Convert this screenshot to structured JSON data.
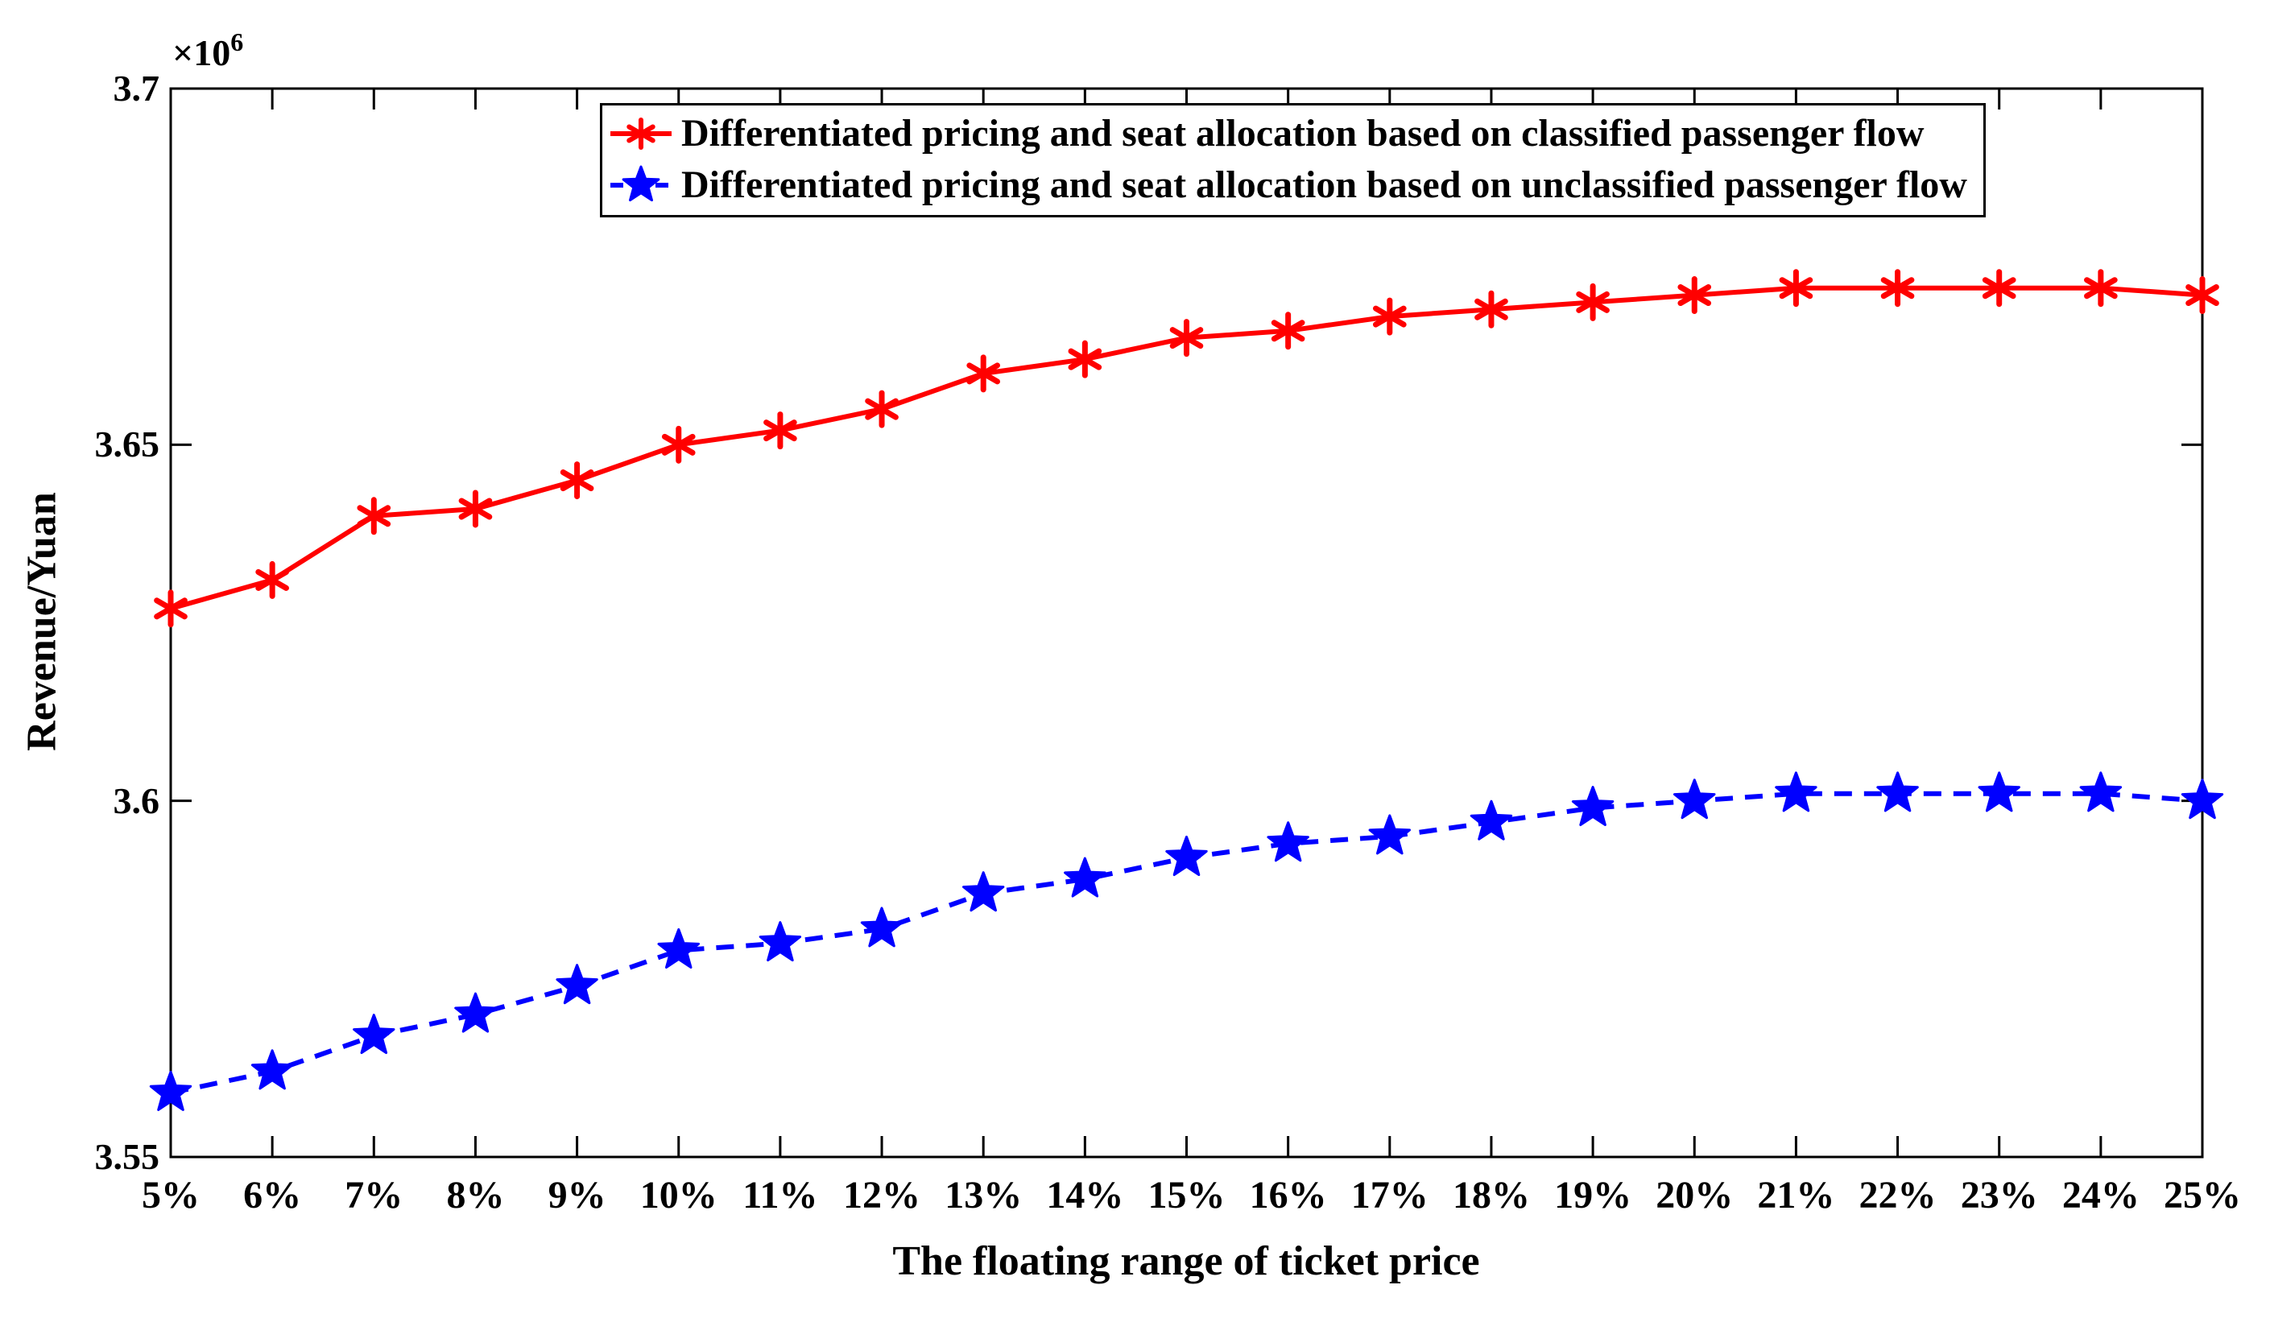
{
  "axes": {
    "x": {
      "label": "The floating range of ticket price",
      "tick_labels": [
        "5%",
        "6%",
        "7%",
        "8%",
        "9%",
        "10%",
        "11%",
        "12%",
        "13%",
        "14%",
        "15%",
        "16%",
        "17%",
        "18%",
        "19%",
        "20%",
        "21%",
        "22%",
        "23%",
        "24%",
        "25%"
      ]
    },
    "y": {
      "label": "Revenue/Yuan",
      "tick_labels": [
        "3.55",
        "3.6",
        "3.65",
        "3.7"
      ],
      "tick_values": [
        3.55,
        3.6,
        3.65,
        3.7
      ],
      "offset_text": "×10",
      "offset_exponent": "6"
    }
  },
  "legend": {
    "items": [
      {
        "label": "Differentiated pricing and seat allocation based on classified passenger flow",
        "color": "#FF0000",
        "line_style": "solid",
        "marker": "asterisk"
      },
      {
        "label": "Differentiated pricing and seat allocation based on unclassified passenger flow",
        "color": "#0000FF",
        "line_style": "dashed",
        "marker": "star"
      }
    ]
  },
  "colors": {
    "classified_series": "#FF0000",
    "unclassified_series": "#0000FF",
    "axis": "#000000",
    "background": "#FFFFFF"
  },
  "chart_data": {
    "type": "line",
    "title": "",
    "xlabel": "The floating range of ticket price",
    "ylabel": "Revenue/Yuan",
    "y_unit_multiplier": "x10^6",
    "categories": [
      "5%",
      "6%",
      "7%",
      "8%",
      "9%",
      "10%",
      "11%",
      "12%",
      "13%",
      "14%",
      "15%",
      "16%",
      "17%",
      "18%",
      "19%",
      "20%",
      "21%",
      "22%",
      "23%",
      "24%",
      "25%"
    ],
    "ylim": [
      3.55,
      3.7
    ],
    "y_ticks": [
      3.55,
      3.6,
      3.65,
      3.7
    ],
    "grid": false,
    "legend_position": "top-inside",
    "series": [
      {
        "name": "Differentiated pricing and seat allocation based on classified passenger flow",
        "color": "#FF0000",
        "line_style": "solid",
        "marker": "asterisk",
        "values": [
          3.627,
          3.631,
          3.64,
          3.641,
          3.645,
          3.65,
          3.652,
          3.655,
          3.66,
          3.662,
          3.665,
          3.666,
          3.668,
          3.669,
          3.67,
          3.671,
          3.672,
          3.672,
          3.672,
          3.672,
          3.671
        ]
      },
      {
        "name": "Differentiated pricing and seat allocation based on unclassified passenger flow",
        "color": "#0000FF",
        "line_style": "dashed",
        "marker": "star",
        "values": [
          3.559,
          3.562,
          3.567,
          3.57,
          3.574,
          3.579,
          3.58,
          3.582,
          3.587,
          3.589,
          3.592,
          3.594,
          3.595,
          3.597,
          3.599,
          3.6,
          3.601,
          3.601,
          3.601,
          3.601,
          3.6
        ]
      }
    ]
  }
}
